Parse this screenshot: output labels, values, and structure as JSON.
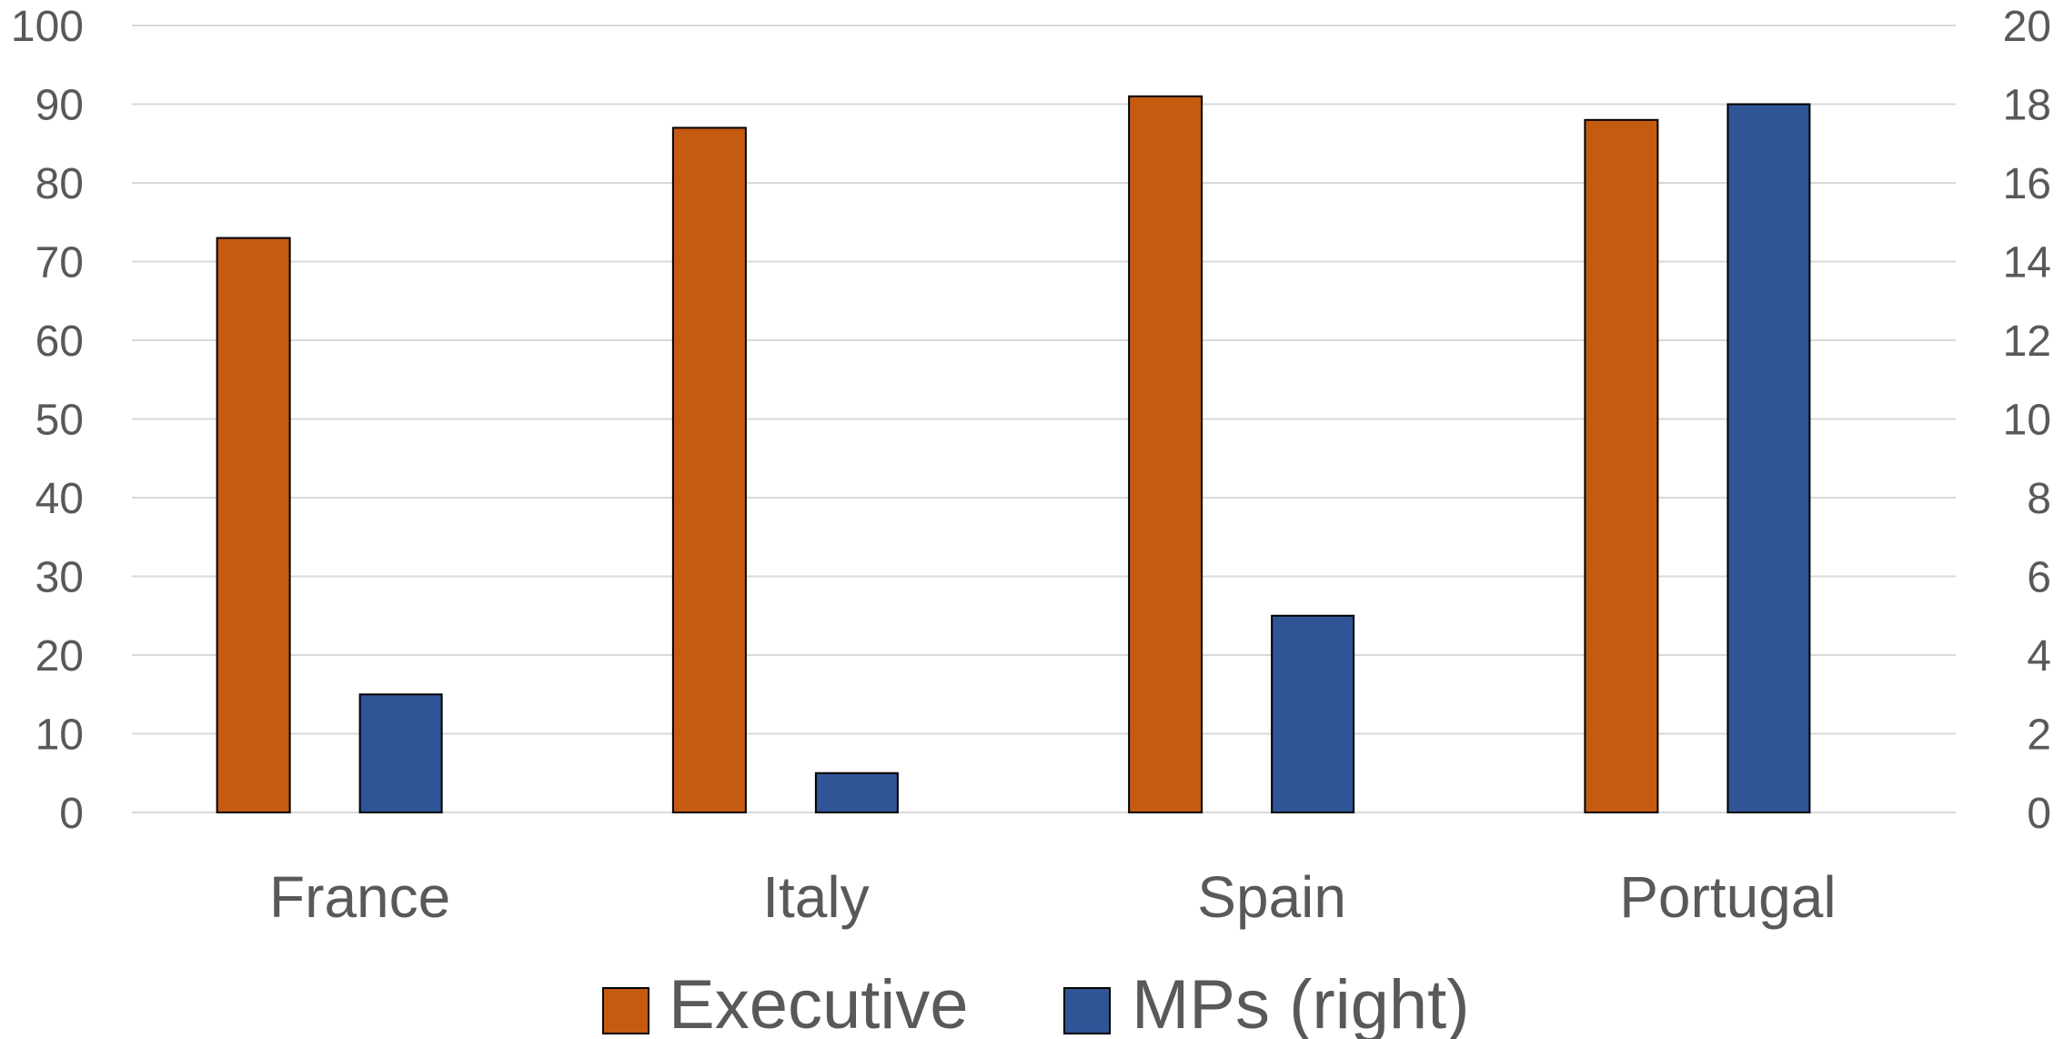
{
  "chart_data": {
    "type": "bar",
    "categories": [
      "France",
      "Italy",
      "Spain",
      "Portugal"
    ],
    "series": [
      {
        "name": "Executive",
        "axis": "left",
        "color": "#c55a11",
        "values": [
          73,
          87,
          91,
          88
        ]
      },
      {
        "name": "MPs (right)",
        "axis": "right",
        "color": "#2f5597",
        "values": [
          3,
          1,
          5,
          18
        ]
      }
    ],
    "y_left": {
      "min": 0,
      "max": 100,
      "step": 10,
      "ticks": [
        "0",
        "10",
        "20",
        "30",
        "40",
        "50",
        "60",
        "70",
        "80",
        "90",
        "100"
      ]
    },
    "y_right": {
      "min": 0,
      "max": 20,
      "step": 2,
      "ticks": [
        "0",
        "2",
        "4",
        "6",
        "8",
        "10",
        "12",
        "14",
        "16",
        "18",
        "20"
      ]
    },
    "grid": true,
    "legend": "bottom"
  }
}
